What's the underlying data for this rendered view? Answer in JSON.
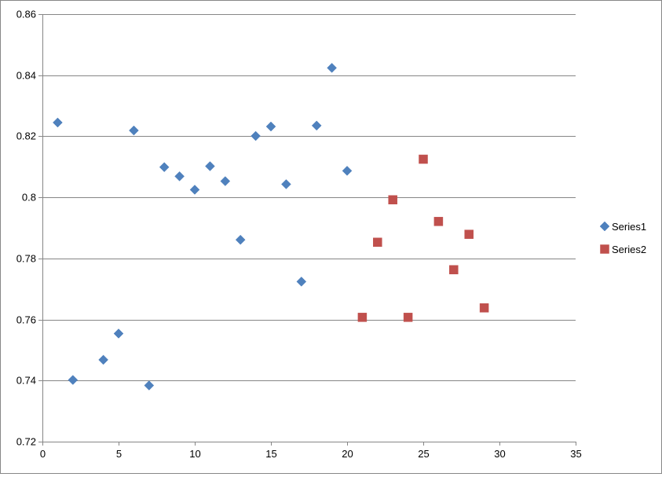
{
  "chart_data": {
    "type": "scatter",
    "title": "",
    "xlabel": "",
    "ylabel": "",
    "xlim": [
      0,
      35
    ],
    "ylim": [
      0.72,
      0.86
    ],
    "x_ticks": [
      "0",
      "5",
      "10",
      "15",
      "20",
      "25",
      "30",
      "35"
    ],
    "y_ticks": [
      "0.72",
      "0.74",
      "0.76",
      "0.78",
      "0.8",
      "0.82",
      "0.84",
      "0.86"
    ],
    "x_tick_values": [
      0,
      5,
      10,
      15,
      20,
      25,
      30,
      35
    ],
    "y_tick_values": [
      0.72,
      0.74,
      0.76,
      0.78,
      0.8,
      0.82,
      0.84,
      0.86
    ],
    "grid": "horizontal",
    "legend_position": "right",
    "series": [
      {
        "name": "Series1",
        "marker": "diamond",
        "color": "#4f81bd",
        "points": [
          [
            1,
            0.8245
          ],
          [
            2,
            0.7402
          ],
          [
            4,
            0.7468
          ],
          [
            5,
            0.7554
          ],
          [
            6,
            0.8219
          ],
          [
            7,
            0.7384
          ],
          [
            8,
            0.8099
          ],
          [
            9,
            0.8069
          ],
          [
            10,
            0.8025
          ],
          [
            11,
            0.8102
          ],
          [
            12,
            0.8053
          ],
          [
            13,
            0.7861
          ],
          [
            14,
            0.8201
          ],
          [
            15,
            0.8232
          ],
          [
            16,
            0.8043
          ],
          [
            17,
            0.7724
          ],
          [
            18,
            0.8235
          ],
          [
            19,
            0.8424
          ],
          [
            20,
            0.8087
          ]
        ]
      },
      {
        "name": "Series2",
        "marker": "square",
        "color": "#c0504d",
        "points": [
          [
            21,
            0.7607
          ],
          [
            22,
            0.7853
          ],
          [
            23,
            0.7992
          ],
          [
            24,
            0.7607
          ],
          [
            25,
            0.8125
          ],
          [
            26,
            0.7921
          ],
          [
            27,
            0.7763
          ],
          [
            28,
            0.7879
          ],
          [
            29,
            0.7638
          ]
        ]
      }
    ]
  }
}
